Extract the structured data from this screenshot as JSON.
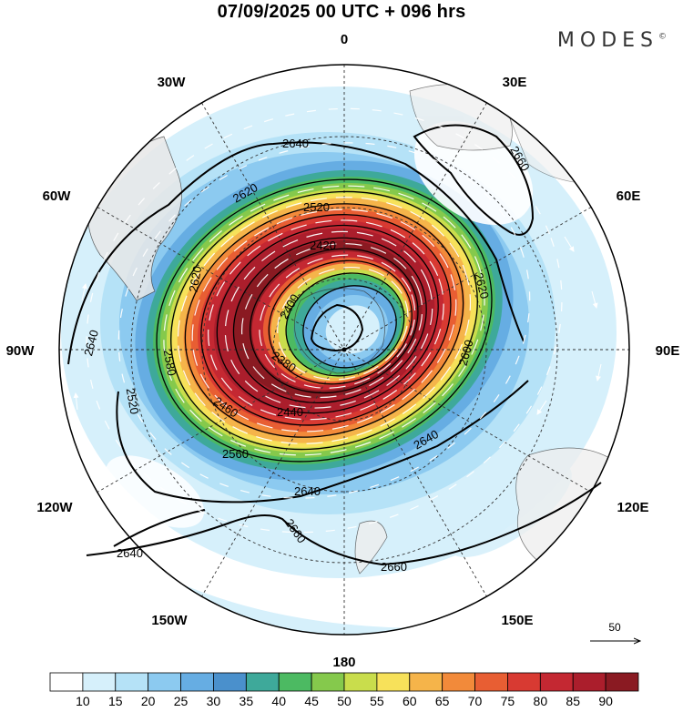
{
  "header": {
    "title": "07/09/2025  00 UTC  + 096 hrs",
    "brand": "MODES",
    "brand_mark": "©"
  },
  "map": {
    "projection": "south-polar-stereographic",
    "longitude_labels": [
      "0",
      "30E",
      "60E",
      "90E",
      "120E",
      "150E",
      "180",
      "150W",
      "120W",
      "90W",
      "60W",
      "30W"
    ],
    "contour_labels": [
      "2640",
      "2660",
      "2620",
      "2520",
      "2420",
      "2400",
      "2380",
      "2440",
      "2460",
      "2560",
      "2620",
      "2600",
      "2640",
      "2640",
      "2660",
      "2640",
      "2660",
      "2620",
      "2640",
      "2520",
      "2580"
    ],
    "wind_reference": {
      "label": "50"
    }
  },
  "colorbar": {
    "ticks": [
      "10",
      "15",
      "20",
      "25",
      "30",
      "35",
      "40",
      "45",
      "50",
      "55",
      "60",
      "65",
      "70",
      "75",
      "80",
      "85",
      "90"
    ],
    "colors": [
      "#ffffff",
      "#d6f0fb",
      "#b5e2f7",
      "#8ccaf0",
      "#66ade3",
      "#4a90cc",
      "#3ea99a",
      "#4cba62",
      "#85c94c",
      "#c9dd4c",
      "#f7e15a",
      "#f5b44a",
      "#f28a3a",
      "#e85e33",
      "#d83a32",
      "#c42832",
      "#ab1e2c",
      "#8a1a22"
    ]
  }
}
